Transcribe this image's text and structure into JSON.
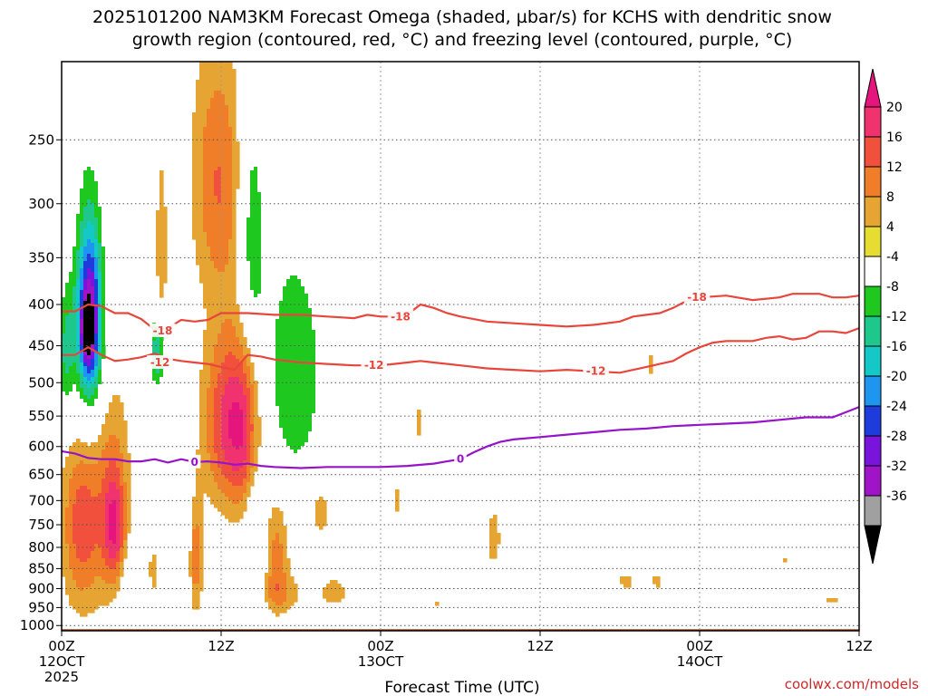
{
  "chart_data": {
    "type": "contour",
    "title_line1": "2025101200 NAM3KM Forecast Omega (shaded, µbar/s) for KCHS with dendritic snow",
    "title_line2": "growth region (contoured, red, °C) and freezing level (contoured, purple, °C)",
    "xlabel": "Forecast Time (UTC)",
    "credit": "coolwx.com/models",
    "y_scale": "log-pressure",
    "y_reversed": true,
    "y_ticks": [
      250,
      300,
      350,
      400,
      450,
      500,
      550,
      600,
      650,
      700,
      750,
      800,
      850,
      900,
      950,
      1000
    ],
    "y_range": [
      200,
      1015
    ],
    "x_range": [
      0,
      60
    ],
    "x_ticks": [
      {
        "hour": 0,
        "labels": [
          "00Z",
          "12OCT",
          "2025"
        ]
      },
      {
        "hour": 12,
        "labels": [
          "12Z"
        ]
      },
      {
        "hour": 24,
        "labels": [
          "00Z",
          "13OCT"
        ]
      },
      {
        "hour": 36,
        "labels": [
          "12Z"
        ]
      },
      {
        "hour": 48,
        "labels": [
          "00Z",
          "14OCT"
        ]
      },
      {
        "hour": 60,
        "labels": [
          "12Z"
        ]
      }
    ],
    "colorbar": {
      "labels": [
        "20",
        "16",
        "12",
        "8",
        "4",
        "-4",
        "-8",
        "-12",
        "-16",
        "-20",
        "-24",
        "-28",
        "-32",
        "-36"
      ],
      "bins": [
        {
          "max": 20,
          "color": "#f0326e"
        },
        {
          "max": 16,
          "color": "#f0503c"
        },
        {
          "max": 12,
          "color": "#f07d28"
        },
        {
          "max": 8,
          "color": "#e6a532"
        },
        {
          "max": 4,
          "color": "#e6dc32"
        },
        {
          "max": -4,
          "color": "#ffffff"
        },
        {
          "max": -8,
          "color": "#1ec81e"
        },
        {
          "max": -12,
          "color": "#1ec88c"
        },
        {
          "max": -16,
          "color": "#14c8c8"
        },
        {
          "max": -20,
          "color": "#1e96f0"
        },
        {
          "max": -24,
          "color": "#1e3cdc"
        },
        {
          "max": -28,
          "color": "#7814dc"
        },
        {
          "max": -32,
          "color": "#a014c8"
        },
        {
          "max": -36,
          "color": "#a0a0a0"
        }
      ],
      "top_triangle_color": "#e6147d",
      "bottom_triangle_color": "#000000"
    },
    "contours": [
      {
        "label": "-18",
        "color": "#e6463c",
        "label_positions": [
          {
            "hour": 7.6,
            "p": 431
          },
          {
            "hour": 25.5,
            "p": 414
          },
          {
            "hour": 47.8,
            "p": 392
          }
        ],
        "points": [
          [
            0,
            408
          ],
          [
            1,
            408
          ],
          [
            2,
            400
          ],
          [
            3,
            402
          ],
          [
            4,
            410
          ],
          [
            5,
            410
          ],
          [
            6,
            417
          ],
          [
            7,
            430
          ],
          [
            8,
            428
          ],
          [
            9,
            418
          ],
          [
            10,
            420
          ],
          [
            11,
            418
          ],
          [
            12,
            410
          ],
          [
            14,
            410
          ],
          [
            16,
            412
          ],
          [
            18,
            412
          ],
          [
            20,
            414
          ],
          [
            22,
            416
          ],
          [
            23,
            412
          ],
          [
            24,
            414
          ],
          [
            25,
            414
          ],
          [
            26,
            412
          ],
          [
            27,
            400
          ],
          [
            28,
            404
          ],
          [
            29,
            410
          ],
          [
            30,
            414
          ],
          [
            32,
            420
          ],
          [
            34,
            422
          ],
          [
            36,
            424
          ],
          [
            38,
            426
          ],
          [
            40,
            424
          ],
          [
            42,
            420
          ],
          [
            43,
            414
          ],
          [
            44,
            412
          ],
          [
            45,
            410
          ],
          [
            46,
            404
          ],
          [
            47,
            396
          ],
          [
            48,
            392
          ],
          [
            50,
            390
          ],
          [
            52,
            395
          ],
          [
            54,
            392
          ],
          [
            55,
            388
          ],
          [
            56,
            388
          ],
          [
            57,
            388
          ],
          [
            58,
            392
          ],
          [
            59,
            392
          ],
          [
            60,
            390
          ]
        ]
      },
      {
        "label": "-12",
        "color": "#e6463c",
        "label_positions": [
          {
            "hour": 7.4,
            "p": 472
          },
          {
            "hour": 23.5,
            "p": 476
          },
          {
            "hour": 40.2,
            "p": 484
          }
        ],
        "points": [
          [
            0,
            462
          ],
          [
            1,
            462
          ],
          [
            2,
            452
          ],
          [
            3,
            462
          ],
          [
            4,
            470
          ],
          [
            5,
            468
          ],
          [
            6,
            465
          ],
          [
            7,
            460
          ],
          [
            8,
            467
          ],
          [
            9,
            470
          ],
          [
            10,
            472
          ],
          [
            11,
            474
          ],
          [
            12,
            478
          ],
          [
            13,
            482
          ],
          [
            14,
            462
          ],
          [
            15,
            464
          ],
          [
            16,
            468
          ],
          [
            18,
            472
          ],
          [
            20,
            474
          ],
          [
            22,
            476
          ],
          [
            24,
            476
          ],
          [
            25,
            474
          ],
          [
            26,
            472
          ],
          [
            27,
            470
          ],
          [
            28,
            472
          ],
          [
            30,
            476
          ],
          [
            32,
            480
          ],
          [
            34,
            482
          ],
          [
            36,
            484
          ],
          [
            38,
            482
          ],
          [
            40,
            484
          ],
          [
            42,
            486
          ],
          [
            43,
            482
          ],
          [
            44,
            478
          ],
          [
            45,
            474
          ],
          [
            46,
            470
          ],
          [
            47,
            460
          ],
          [
            48,
            452
          ],
          [
            49,
            446
          ],
          [
            50,
            444
          ],
          [
            52,
            444
          ],
          [
            53,
            440
          ],
          [
            54,
            438
          ],
          [
            55,
            442
          ],
          [
            56,
            440
          ],
          [
            57,
            432
          ],
          [
            58,
            432
          ],
          [
            59,
            434
          ],
          [
            60,
            428
          ]
        ]
      },
      {
        "label": "0",
        "color": "#9614c8",
        "label_positions": [
          {
            "hour": 10.0,
            "p": 627
          },
          {
            "hour": 30.0,
            "p": 622
          }
        ],
        "points": [
          [
            0,
            608
          ],
          [
            1,
            612
          ],
          [
            2,
            620
          ],
          [
            3,
            622
          ],
          [
            4,
            622
          ],
          [
            5,
            626
          ],
          [
            6,
            626
          ],
          [
            7,
            622
          ],
          [
            8,
            628
          ],
          [
            9,
            622
          ],
          [
            10,
            627
          ],
          [
            11,
            626
          ],
          [
            12,
            628
          ],
          [
            13,
            632
          ],
          [
            14,
            630
          ],
          [
            15,
            634
          ],
          [
            16,
            636
          ],
          [
            18,
            638
          ],
          [
            20,
            636
          ],
          [
            22,
            636
          ],
          [
            24,
            636
          ],
          [
            26,
            634
          ],
          [
            28,
            630
          ],
          [
            29,
            626
          ],
          [
            30,
            622
          ],
          [
            31,
            610
          ],
          [
            32,
            600
          ],
          [
            33,
            592
          ],
          [
            34,
            588
          ],
          [
            36,
            584
          ],
          [
            38,
            580
          ],
          [
            40,
            576
          ],
          [
            42,
            572
          ],
          [
            44,
            570
          ],
          [
            46,
            566
          ],
          [
            48,
            564
          ],
          [
            50,
            562
          ],
          [
            52,
            560
          ],
          [
            54,
            556
          ],
          [
            55,
            554
          ],
          [
            56,
            552
          ],
          [
            57,
            552
          ],
          [
            58,
            552
          ],
          [
            59,
            544
          ],
          [
            60,
            536
          ]
        ]
      }
    ],
    "omega_blobs": [
      {
        "hour": 1.9,
        "p": 430,
        "hw": 0.3,
        "hp": 24,
        "value": -40
      },
      {
        "hour": 2.1,
        "p": 420,
        "hw": 0.9,
        "hp": 95,
        "value": -30
      },
      {
        "hour": 2.1,
        "p": 430,
        "hw": 1.5,
        "hp": 220,
        "value": -10
      },
      {
        "hour": 0.3,
        "p": 460,
        "hw": 0.7,
        "hp": 90,
        "value": -12
      },
      {
        "hour": 1.4,
        "p": 740,
        "hw": 1.4,
        "hp": 200,
        "value": 14
      },
      {
        "hour": 3.5,
        "p": 680,
        "hw": 1.6,
        "hp": 230,
        "value": 10
      },
      {
        "hour": 4.0,
        "p": 760,
        "hw": 0.8,
        "hp": 120,
        "value": 14
      },
      {
        "hour": 5.5,
        "p": 880,
        "hw": 1.2,
        "hp": 100,
        "value": -7
      },
      {
        "hour": 7.2,
        "p": 460,
        "hw": 0.6,
        "hp": 55,
        "value": -16
      },
      {
        "hour": 7.5,
        "p": 350,
        "hw": 0.4,
        "hp": 90,
        "value": 8
      },
      {
        "hour": 9.3,
        "p": 760,
        "hw": 0.6,
        "hp": 200,
        "value": -8
      },
      {
        "hour": 10.0,
        "p": 820,
        "hw": 0.6,
        "hp": 140,
        "value": 12
      },
      {
        "hour": 6.8,
        "p": 860,
        "hw": 0.5,
        "hp": 90,
        "value": 7
      },
      {
        "hour": 11.8,
        "p": 280,
        "hw": 2.0,
        "hp": 100,
        "value": 12
      },
      {
        "hour": 12.6,
        "p": 560,
        "hw": 1.9,
        "hp": 140,
        "value": 18
      },
      {
        "hour": 14.0,
        "p": 580,
        "hw": 1.2,
        "hp": 150,
        "value": 10
      },
      {
        "hour": 14.3,
        "p": 330,
        "hw": 1.0,
        "hp": 130,
        "value": -12
      },
      {
        "hour": 14.5,
        "p": 780,
        "hw": 0.8,
        "hp": 200,
        "value": -8
      },
      {
        "hour": 16.2,
        "p": 810,
        "hw": 0.9,
        "hp": 140,
        "value": 10
      },
      {
        "hour": 17.5,
        "p": 490,
        "hw": 2.6,
        "hp": 190,
        "value": -12
      },
      {
        "hour": 16.5,
        "p": 910,
        "hw": 2.0,
        "hp": 50,
        "value": 6
      },
      {
        "hour": 19.5,
        "p": 720,
        "hw": 0.7,
        "hp": 55,
        "value": 8
      },
      {
        "hour": 20.5,
        "p": 910,
        "hw": 1.2,
        "hp": 45,
        "value": 6
      },
      {
        "hour": 26.8,
        "p": 560,
        "hw": 0.3,
        "hp": 30,
        "value": 6
      },
      {
        "hour": 25.2,
        "p": 700,
        "hw": 0.3,
        "hp": 40,
        "value": 5
      },
      {
        "hour": 32.5,
        "p": 780,
        "hw": 0.6,
        "hp": 80,
        "value": 6
      },
      {
        "hour": 42.5,
        "p": 880,
        "hw": 0.9,
        "hp": 28,
        "value": 5
      },
      {
        "hour": 44.8,
        "p": 880,
        "hw": 0.7,
        "hp": 30,
        "value": 5
      },
      {
        "hour": 44.3,
        "p": 475,
        "hw": 0.2,
        "hp": 28,
        "value": 5
      },
      {
        "hour": 53.1,
        "p": 920,
        "hw": 0.5,
        "hp": 45,
        "value": -8
      },
      {
        "hour": 54.5,
        "p": 830,
        "hw": 0.2,
        "hp": 15,
        "value": 5
      },
      {
        "hour": 58.0,
        "p": 930,
        "hw": 0.8,
        "hp": 18,
        "value": 5
      },
      {
        "hour": 28.2,
        "p": 940,
        "hw": 0.3,
        "hp": 12,
        "value": 5
      }
    ]
  }
}
